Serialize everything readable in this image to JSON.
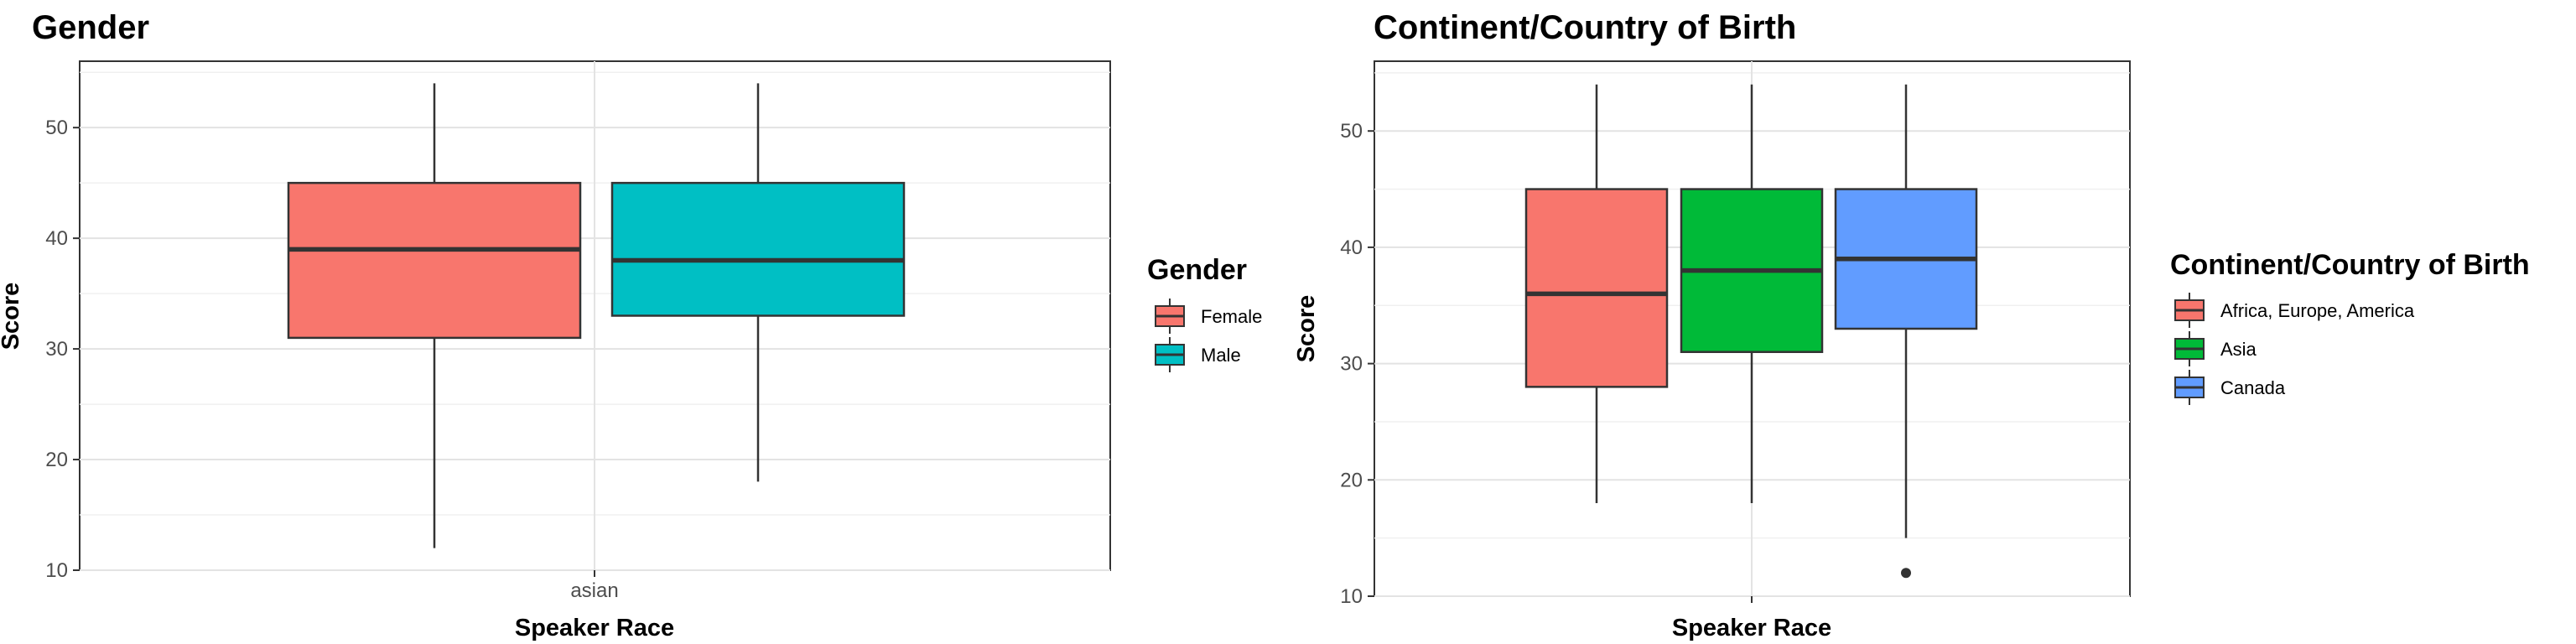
{
  "chart_data": [
    {
      "type": "box",
      "title": "Gender",
      "xlabel": "Speaker Race",
      "ylabel": "Score",
      "ylim": [
        10,
        56
      ],
      "yticks": [
        10,
        20,
        30,
        40,
        50
      ],
      "categories": [
        "asian"
      ],
      "grid": true,
      "legend": {
        "title": "Gender",
        "position": "right"
      },
      "series": [
        {
          "name": "Female",
          "color": "#F8766D",
          "category": "asian",
          "min": 12,
          "q1": 31,
          "median": 39,
          "q3": 45,
          "max": 54,
          "outliers": []
        },
        {
          "name": "Male",
          "color": "#00BFC4",
          "category": "asian",
          "min": 18,
          "q1": 33,
          "median": 38,
          "q3": 45,
          "max": 54,
          "outliers": []
        }
      ]
    },
    {
      "type": "box",
      "title": "Continent/Country of Birth",
      "xlabel": "Speaker Race",
      "ylabel": "Score",
      "ylim": [
        10,
        56
      ],
      "yticks": [
        10,
        20,
        30,
        40,
        50
      ],
      "categories": [
        ""
      ],
      "grid": true,
      "legend": {
        "title": "Continent/Country of Birth",
        "position": "right"
      },
      "series": [
        {
          "name": "Africa, Europe, America",
          "color": "#F8766D",
          "min": 18,
          "q1": 28,
          "median": 36,
          "q3": 45,
          "max": 54,
          "outliers": []
        },
        {
          "name": "Asia",
          "color": "#00BA38",
          "min": 18,
          "q1": 31,
          "median": 38,
          "q3": 45,
          "max": 54,
          "outliers": []
        },
        {
          "name": "Canada",
          "color": "#619CFF",
          "min": 15,
          "q1": 33,
          "median": 39,
          "q3": 45,
          "max": 54,
          "outliers": [
            12
          ]
        }
      ]
    }
  ]
}
